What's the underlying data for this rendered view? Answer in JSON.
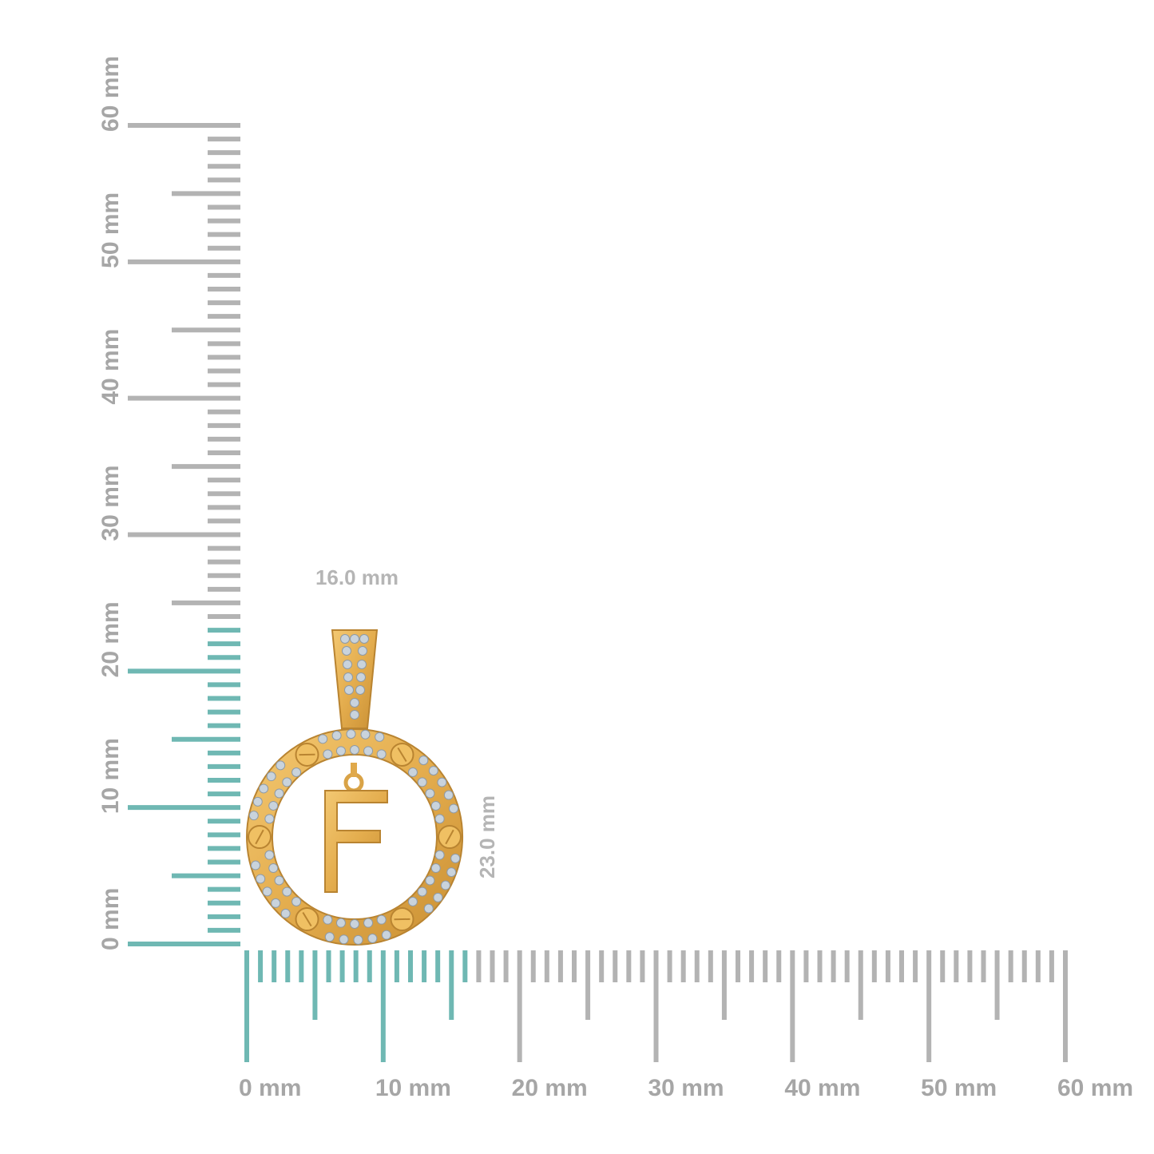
{
  "rulers": {
    "unit": "mm",
    "range_mm": [
      0,
      60
    ],
    "horizontal_labels": [
      "0 mm",
      "10 mm",
      "20 mm",
      "30 mm",
      "40 mm",
      "50 mm",
      "60 mm"
    ],
    "vertical_labels": [
      "0 mm",
      "10 mm",
      "20 mm",
      "30 mm",
      "40 mm",
      "50 mm",
      "60 mm"
    ],
    "highlight_width_mm": 16.0,
    "highlight_height_mm": 23.0
  },
  "dimensions": {
    "width_label": "16.0 mm",
    "height_label": "23.0 mm"
  },
  "product": {
    "letter": "F"
  },
  "colors": {
    "highlight": "#6fb8b3",
    "tick": "#b3b3b3",
    "gold": "#e9b556",
    "gold_dark": "#c98f33",
    "stone": "#c9d3dc"
  }
}
